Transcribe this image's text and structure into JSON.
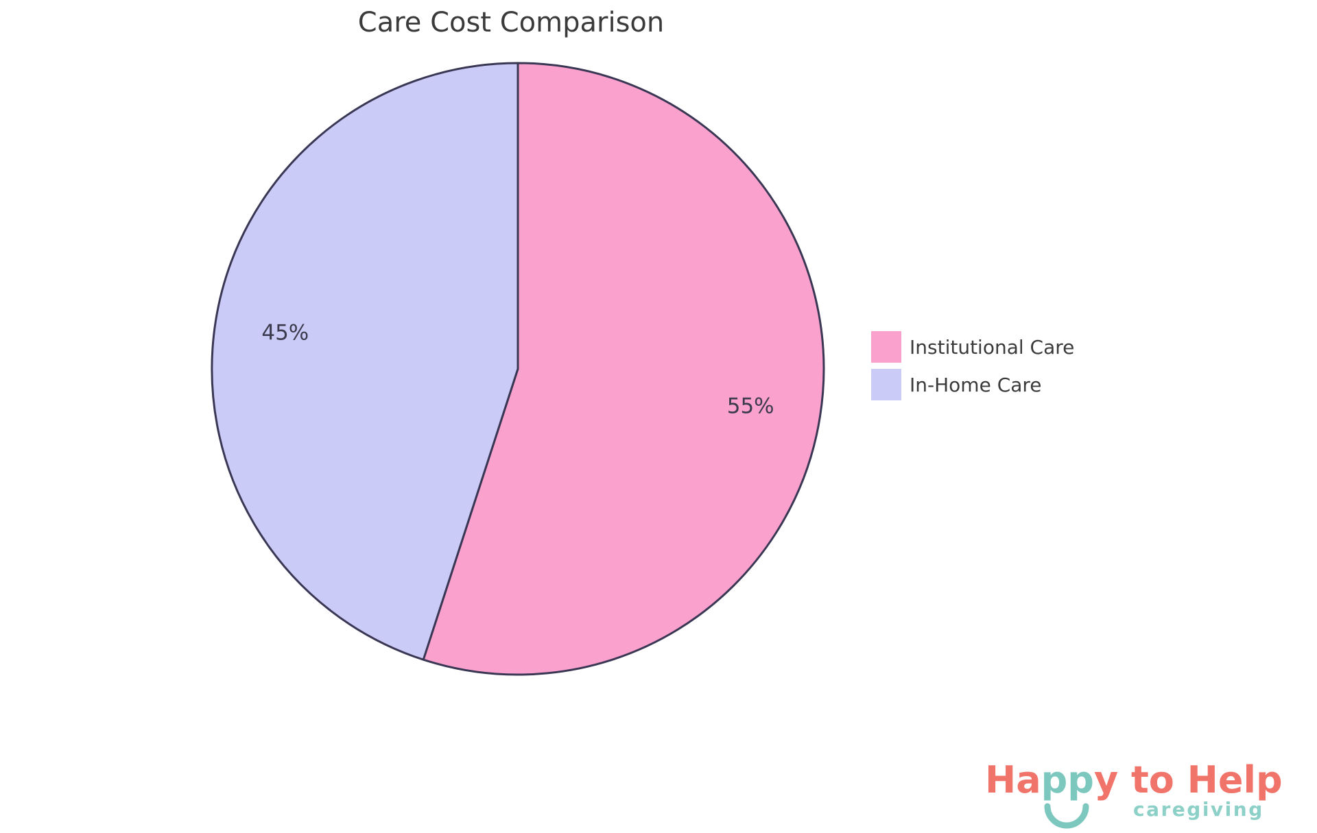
{
  "chart_data": {
    "type": "pie",
    "title": "Care Cost Comparison",
    "categories": [
      "Institutional Care",
      "In-Home Care"
    ],
    "values": [
      55,
      45
    ],
    "slices": [
      {
        "label": "Institutional Care",
        "value": 55,
        "pct_label": "55%",
        "color": "#FBA1CE"
      },
      {
        "label": "In-Home Care",
        "value": 45,
        "pct_label": "45%",
        "color": "#CACBF7"
      }
    ],
    "start_angle": "top",
    "direction": "clockwise",
    "outline_color": "#3A3754",
    "title_color": "#3A3A3A",
    "label_color": "#3B3B4D",
    "legend_position": "right",
    "legend_text_color": "#3A3A3A",
    "background_color": "#FFFFFF"
  },
  "logo": {
    "word_parts": [
      {
        "text": "Ha",
        "color_key": "coral"
      },
      {
        "text": "pp",
        "color_key": "teal"
      },
      {
        "text": "y",
        "color_key": "coral"
      },
      {
        "text": " to ",
        "color_key": "coral"
      },
      {
        "text": "Help",
        "color_key": "coral"
      }
    ],
    "tagline": "caregiving",
    "colors": {
      "coral": "#F0746A",
      "teal": "#7CC8BF",
      "tagline": "#8CD0C8"
    }
  }
}
